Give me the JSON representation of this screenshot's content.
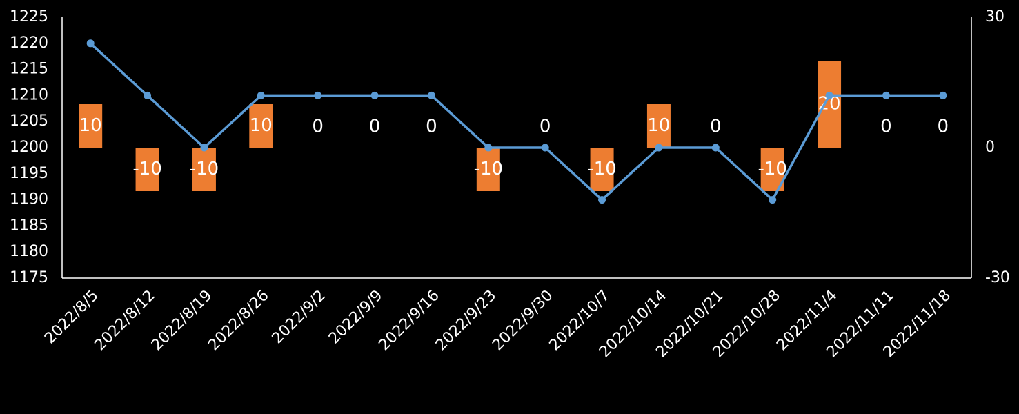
{
  "chart_data": {
    "type": "combo",
    "categories": [
      "2022/8/5",
      "2022/8/12",
      "2022/8/19",
      "2022/8/26",
      "2022/9/2",
      "2022/9/9",
      "2022/9/16",
      "2022/9/23",
      "2022/9/30",
      "2022/10/7",
      "2022/10/14",
      "2022/10/21",
      "2022/10/28",
      "2022/11/4",
      "2022/11/11",
      "2022/11/18"
    ],
    "series": [
      {
        "type": "bar",
        "axis": "y2",
        "color": "#ed7d31",
        "values": [
          10,
          -10,
          -10,
          10,
          0,
          0,
          0,
          -10,
          0,
          -10,
          10,
          0,
          -10,
          20,
          0,
          0
        ]
      },
      {
        "type": "line",
        "color": "#5b9bd5",
        "values": [
          1220,
          1210,
          1200,
          1210,
          1210,
          1210,
          1210,
          1200,
          1200,
          1190,
          1200,
          1200,
          1190,
          1210,
          1210,
          1210
        ]
      }
    ],
    "ylim": [
      1175,
      1225
    ],
    "yticks": [
      1175,
      1180,
      1185,
      1190,
      1195,
      1200,
      1205,
      1210,
      1215,
      1220,
      1225
    ],
    "y2lim": [
      -30,
      30
    ],
    "y2ticks": [
      -30,
      0,
      30
    ]
  }
}
